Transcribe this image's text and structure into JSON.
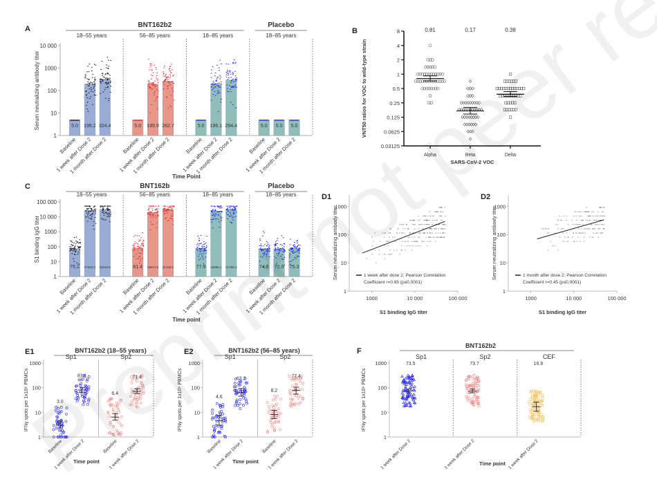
{
  "watermark": "Preprint not peer reviewed",
  "colors": {
    "blue_bar": "#98acd6",
    "red_bar": "#e6978a",
    "teal_bar": "#8fbdb8",
    "blue_pt": "#1a1aff",
    "red_pt": "#ee2222",
    "black_pt": "#111111",
    "orange_pt": "#f4c060",
    "pink_pt": "#ee8888"
  },
  "chart_data": [
    {
      "id": "A",
      "panel_label": "A",
      "type": "bar",
      "ylabel": "Serum neutralizing antibody titer",
      "xlabel": "Time Point",
      "yscale": "log",
      "ylim": [
        1,
        10000
      ],
      "yticks": [
        "1",
        "10",
        "100",
        "1000",
        "10 000"
      ],
      "header_groups": [
        {
          "label": "BNT162b2",
          "span": [
            0,
            2
          ]
        },
        {
          "label": "Placebo",
          "span": [
            3,
            3
          ]
        }
      ],
      "groups": [
        {
          "label": "18–55 years",
          "color": "blue",
          "points": "black",
          "categories": [
            "Baseline",
            "1 week after Dose 2",
            "1 month after Dose 2"
          ],
          "values": [
            5.0,
            196.2,
            324.4
          ],
          "labels": [
            "5.0",
            "196.2",
            "324.4"
          ]
        },
        {
          "label": "56–85 years",
          "color": "red",
          "points": "red",
          "categories": [
            "Baseline",
            "1 week after Dose 2",
            "1 month after Dose 2"
          ],
          "values": [
            5.0,
            195.9,
            262.7
          ],
          "labels": [
            "5.0",
            "195.9",
            "262.7"
          ]
        },
        {
          "label": "18–85 years",
          "color": "teal",
          "points": "blue",
          "categories": [
            "Baseline",
            "1 week after Dose 2",
            "1 month after Dose 2"
          ],
          "values": [
            5.0,
            196.1,
            294.4
          ],
          "labels": [
            "5.0",
            "196.1",
            "294.4"
          ]
        },
        {
          "label": "18–85 years",
          "color": "teal",
          "points": "blue",
          "categories": [
            "Baseline",
            "1 week after Dose 2",
            "1 month after Dose 2"
          ],
          "values": [
            5.0,
            5.0,
            5.0
          ],
          "labels": [
            "5.0",
            "5.0",
            "5.0"
          ]
        }
      ]
    },
    {
      "id": "B",
      "panel_label": "B",
      "type": "scatter",
      "ylabel": "VNT50 ratios for VOC to wild-type strain",
      "xlabel": "SARS-CoV-2 VOC",
      "yscale": "log2",
      "ylim": [
        0.03125,
        8
      ],
      "yticks": [
        "0.03125",
        "0.0625",
        "0.125",
        "0.25",
        "0.5",
        "1",
        "2",
        "4",
        "8"
      ],
      "categories": [
        "Alpha",
        "Beta",
        "Delta"
      ],
      "gmr": [
        "0.81",
        "0.17",
        "0.38"
      ],
      "series": [
        {
          "name": "Alpha",
          "marker": "circle",
          "gmr": 0.81,
          "ci": [
            0.72,
            0.92
          ],
          "values": [
            4,
            2,
            2,
            2,
            1.41,
            1.41,
            1.41,
            1.41,
            1.41,
            1,
            1,
            1,
            1,
            1,
            1,
            1,
            1,
            1,
            1,
            1,
            1,
            0.71,
            0.71,
            0.71,
            0.71,
            0.71,
            0.71,
            0.71,
            0.71,
            0.71,
            0.71,
            0.71,
            0.71,
            0.71,
            0.71,
            0.5,
            0.5,
            0.5,
            0.5,
            0.5,
            0.5,
            0.5,
            0.5,
            0.35,
            0.25,
            0.25
          ]
        },
        {
          "name": "Beta",
          "marker": "diamond",
          "gmr": 0.17,
          "ci": [
            0.145,
            0.2
          ],
          "values": [
            0.71,
            0.5,
            0.5,
            0.5,
            0.35,
            0.35,
            0.35,
            0.25,
            0.25,
            0.25,
            0.25,
            0.25,
            0.25,
            0.25,
            0.25,
            0.25,
            0.18,
            0.18,
            0.18,
            0.18,
            0.18,
            0.18,
            0.18,
            0.18,
            0.18,
            0.18,
            0.18,
            0.125,
            0.125,
            0.125,
            0.125,
            0.125,
            0.125,
            0.125,
            0.125,
            0.088,
            0.088,
            0.088,
            0.088,
            0.088,
            0.088,
            0.0625,
            0.0625,
            0.0625,
            0.044
          ]
        },
        {
          "name": "Delta",
          "marker": "square",
          "gmr": 0.38,
          "ci": [
            0.34,
            0.43
          ],
          "values": [
            1,
            0.71,
            0.71,
            0.71,
            0.71,
            0.71,
            0.71,
            0.5,
            0.5,
            0.5,
            0.5,
            0.5,
            0.5,
            0.5,
            0.5,
            0.5,
            0.5,
            0.5,
            0.5,
            0.5,
            0.35,
            0.35,
            0.35,
            0.35,
            0.35,
            0.35,
            0.35,
            0.35,
            0.35,
            0.35,
            0.25,
            0.25,
            0.25,
            0.25,
            0.25,
            0.18,
            0.18,
            0.18,
            0.18,
            0.18,
            0.18,
            0.125
          ]
        }
      ]
    },
    {
      "id": "C",
      "panel_label": "C",
      "type": "bar",
      "ylabel": "S1 binding IgG titer",
      "xlabel": "Time point",
      "yscale": "log",
      "ylim": [
        1,
        100000
      ],
      "yticks": [
        "1",
        "10",
        "100",
        "1000",
        "10 000",
        "100 000"
      ],
      "header_groups": [
        {
          "label": "BNT162b",
          "span": [
            0,
            2
          ]
        },
        {
          "label": "Placebo",
          "span": [
            3,
            3
          ]
        }
      ],
      "groups": [
        {
          "label": "18–55 years",
          "color": "blue",
          "points": "black",
          "categories": [
            "Baseline",
            "1 week after Dose 2",
            "1 month after Dose 2"
          ],
          "values": [
            75.1,
            27683.3,
            32034.8
          ],
          "labels": [
            "75.1",
            "27683.3",
            "32034.8"
          ]
        },
        {
          "label": "56–85 years",
          "color": "red",
          "points": "red",
          "categories": [
            "Baseline",
            "1 week after Dose 2",
            "1 month after Dose 2"
          ],
          "values": [
            81.4,
            19873.5,
            31228.2
          ],
          "labels": [
            "81.4",
            "19873.5",
            "31228.2"
          ]
        },
        {
          "label": "18–85 years",
          "color": "teal",
          "points": "blue",
          "categories": [
            "Baseline",
            "1 week after Dose 2",
            "1 month after Dose 2"
          ],
          "values": [
            77.9,
            23695.1,
            31785.3
          ],
          "labels": [
            "77.9",
            "23695.1",
            "31785.3"
          ]
        },
        {
          "label": "18–85 years",
          "color": "teal",
          "points": "blue",
          "categories": [
            "Baseline",
            "1 week after Dose 2",
            "1 month after Dose 2"
          ],
          "values": [
            74.6,
            72.9,
            75.3
          ],
          "labels": [
            "74.6",
            "72.9",
            "75.3"
          ]
        }
      ]
    },
    {
      "id": "D1",
      "panel_label": "D1",
      "type": "scatter",
      "ylabel": "Serum neutralizing antibody titer",
      "xlabel": "S1 binding IgG titer",
      "xscale": "log",
      "yscale": "log",
      "xlim": [
        300,
        100000
      ],
      "ylim": [
        1,
        2500
      ],
      "xticks": [
        "1000",
        "10 000",
        "100 000"
      ],
      "yticks": [
        "1",
        "10",
        "100",
        "1000"
      ],
      "legend": "1 week after dose 2; Pearson Correlation Coefficient r=0.65 (p≤0.0001)",
      "fit": {
        "x": [
          600,
          50000
        ],
        "y": [
          22,
          290
        ]
      },
      "r": 0.65
    },
    {
      "id": "D2",
      "panel_label": "D2",
      "type": "scatter",
      "ylabel": "Serum neutralizing antibody titer",
      "xlabel": "S1 binding IgG titer",
      "xscale": "log",
      "yscale": "log",
      "xlim": [
        300,
        100000
      ],
      "ylim": [
        1,
        2500
      ],
      "xticks": [
        "1000",
        "10 000",
        "100 000"
      ],
      "yticks": [
        "1",
        "10",
        "100",
        "1000"
      ],
      "legend": "1 month after dose 2; Pearson Correlation Coefficient r=0.45 (p≤0.0001)",
      "fit": {
        "x": [
          1400,
          50000
        ],
        "y": [
          70,
          330
        ]
      },
      "r": 0.45
    },
    {
      "id": "E1",
      "panel_label": "E1",
      "type": "scatter",
      "title": "BNT162b2 (18–55 years)",
      "ylabel": "IFNγ spots per 1x10⁶ PBMCs",
      "xlabel": "Time point",
      "yscale": "log",
      "ylim": [
        1,
        1000
      ],
      "yticks": [
        "1",
        "10",
        "100",
        "1000"
      ],
      "groups": [
        {
          "label": "Sp1",
          "color": "blue",
          "categories": [
            "Baseline",
            "1 week after Dose 2"
          ],
          "gm": [
            3.0,
            81.1
          ],
          "labels": [
            "3.0",
            "81.1"
          ],
          "ci": [
            [
              2.3,
              4.5
            ],
            [
              65,
              100
            ]
          ]
        },
        {
          "label": "Sp2",
          "color": "pink",
          "categories": [
            "Baseline",
            "1 week after Dose 2"
          ],
          "gm": [
            6.4,
            71.4
          ],
          "labels": [
            "6.4",
            "71.4"
          ],
          "ci": [
            [
              4.8,
              8.8
            ],
            [
              58,
              90
            ]
          ]
        }
      ]
    },
    {
      "id": "E2",
      "panel_label": "E2",
      "type": "scatter",
      "title": "BNT162b2 (56–85 years)",
      "ylabel": "IFNγ spots per 1x10⁶ PBMCs",
      "xlabel": "Time point",
      "yscale": "log",
      "ylim": [
        1,
        1000
      ],
      "yticks": [
        "1",
        "10",
        "100",
        "1000"
      ],
      "groups": [
        {
          "label": "Sp1",
          "color": "blue",
          "categories": [
            "Baseline",
            "1 week after Dose 2"
          ],
          "gm": [
            4.6,
            63.2
          ],
          "labels": [
            "4.6",
            "63.2"
          ],
          "ci": [
            [
              3,
              7.5
            ],
            [
              45,
              92
            ]
          ]
        },
        {
          "label": "Sp2",
          "color": "pink",
          "categories": [
            "Baseline",
            "1 week after Dose 2"
          ],
          "gm": [
            8.2,
            77.4
          ],
          "labels": [
            "8.2",
            "77.4"
          ],
          "ci": [
            [
              5.5,
              12
            ],
            [
              55,
              105
            ]
          ]
        }
      ]
    },
    {
      "id": "F",
      "panel_label": "F",
      "type": "scatter",
      "title": "BNT162b2",
      "ylabel": "IFNγ spots per 1x10⁶ PBMCs",
      "xlabel": "Time point",
      "yscale": "log",
      "ylim": [
        1,
        1000
      ],
      "yticks": [
        "1",
        "10",
        "100",
        "1000"
      ],
      "groups": [
        {
          "label": "Sp1",
          "color": "blue",
          "marker": "triangle",
          "categories": [
            "1 week after Dose 2"
          ],
          "gm": [
            73.5
          ],
          "labels": [
            "73.5"
          ],
          "ci": [
            [
              62,
              88
            ]
          ]
        },
        {
          "label": "Sp2",
          "color": "pink",
          "marker": "circle",
          "categories": [
            "1 week after Dose 2"
          ],
          "gm": [
            73.7
          ],
          "labels": [
            "73.7"
          ],
          "ci": [
            [
              62,
              88
            ]
          ]
        },
        {
          "label": "CEF",
          "color": "orange",
          "marker": "square",
          "categories": [
            "1 week after Dose 2"
          ],
          "gm": [
            16.9
          ],
          "labels": [
            "16.9"
          ],
          "ci": [
            [
              11,
              26
            ]
          ]
        }
      ]
    }
  ]
}
